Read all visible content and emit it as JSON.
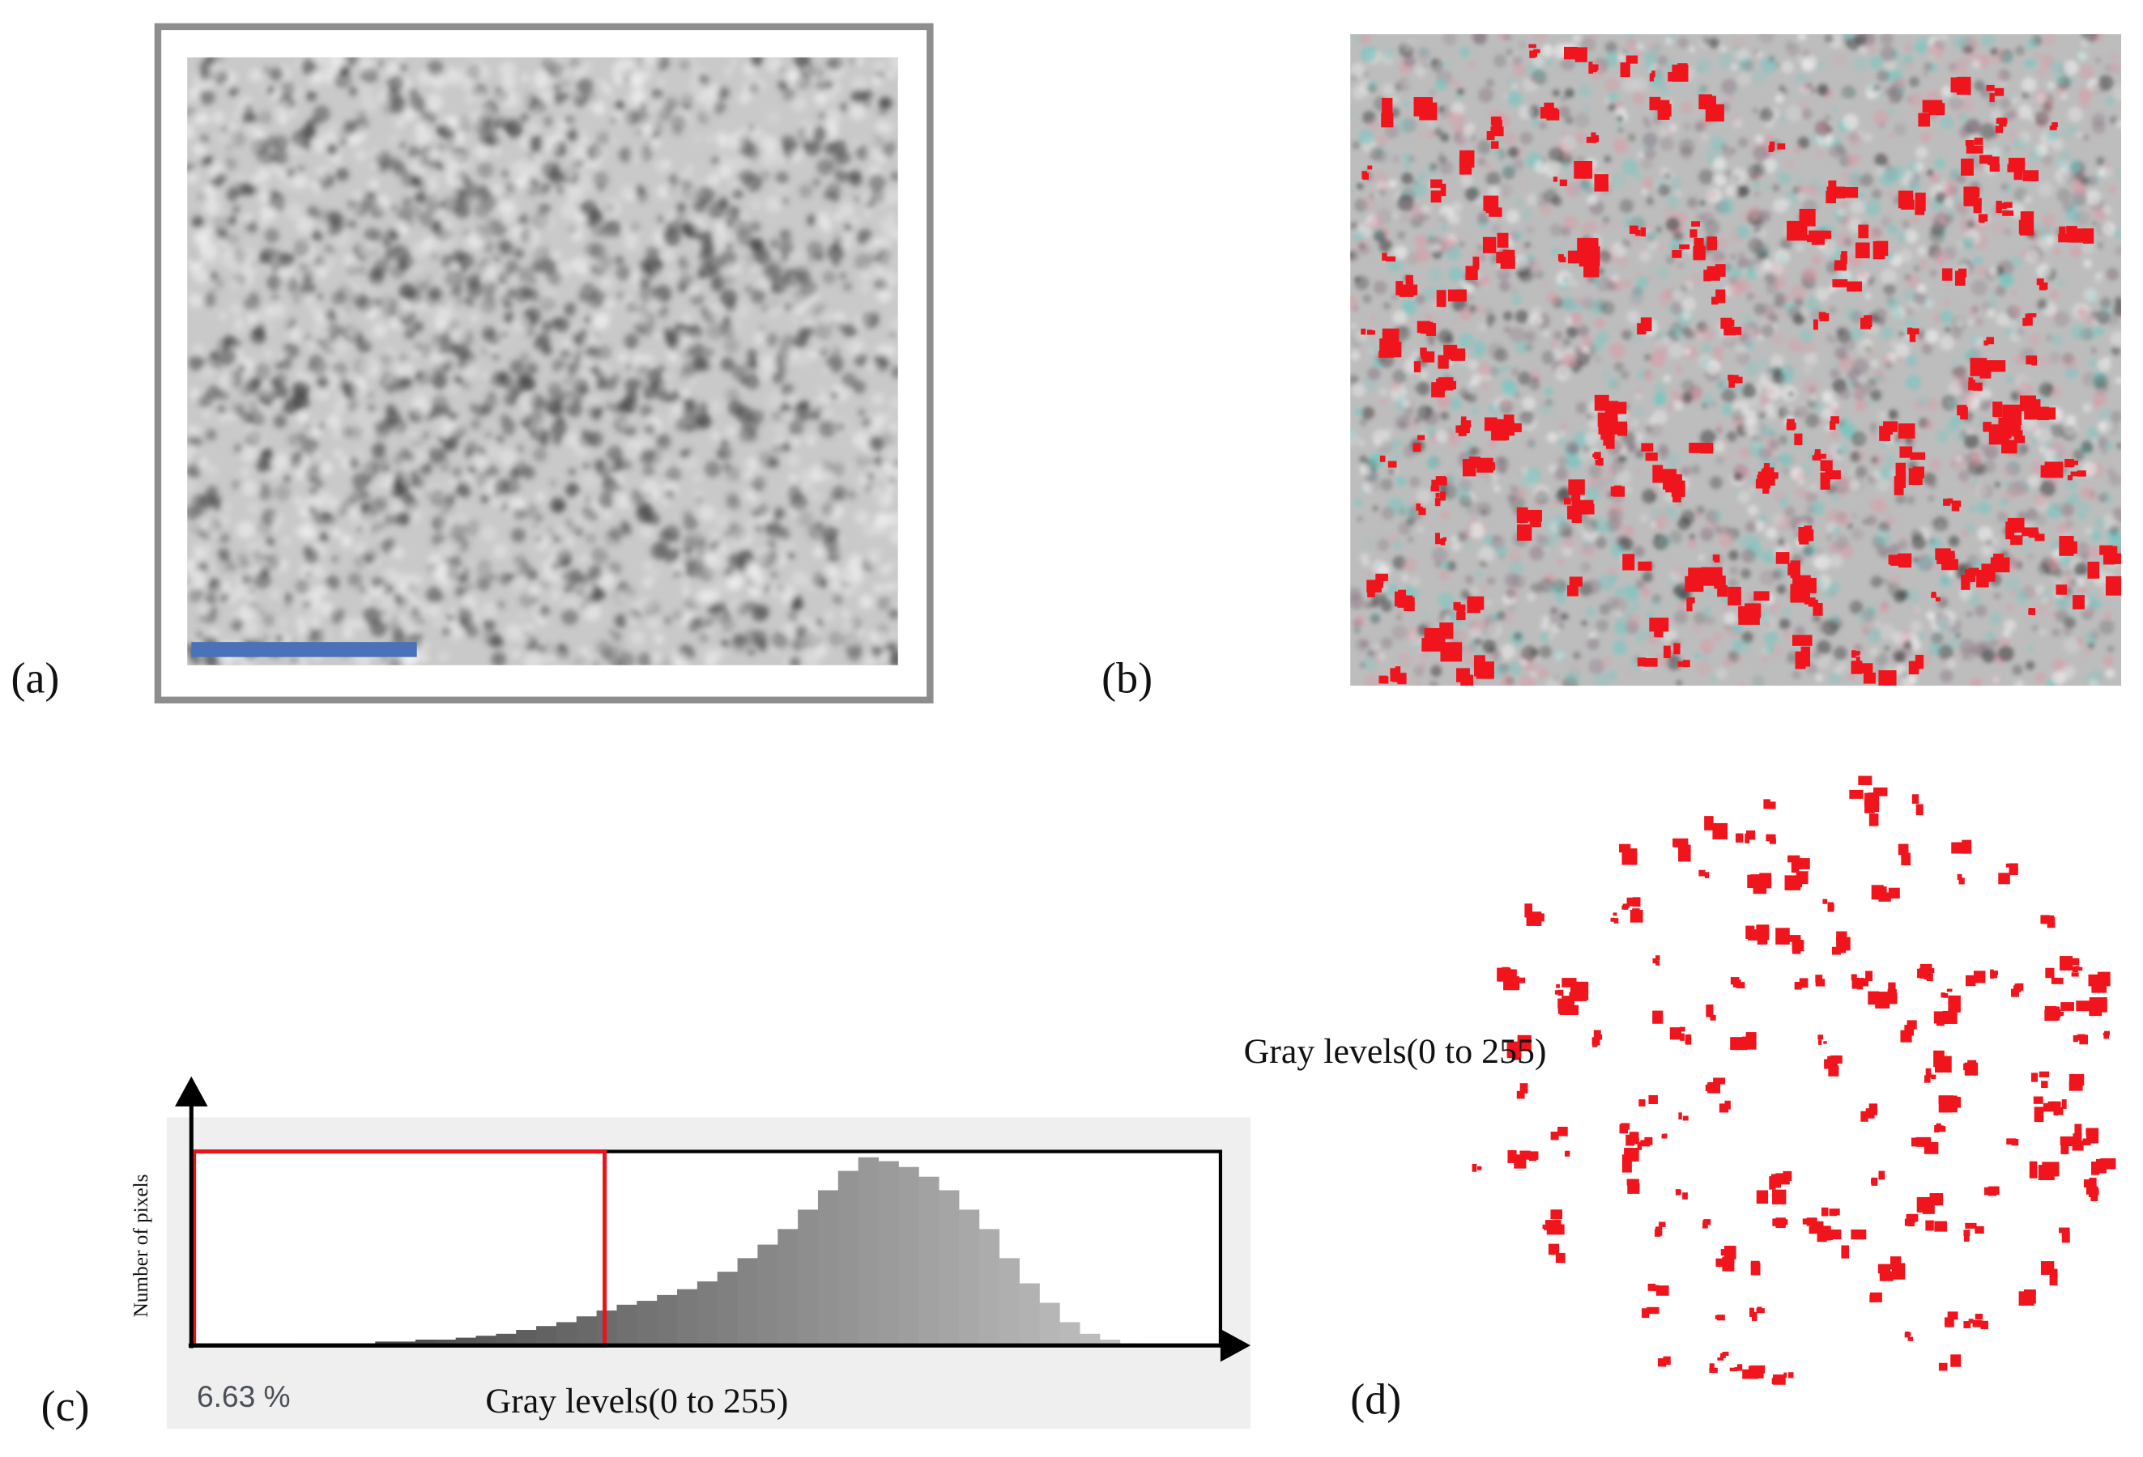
{
  "figure": {
    "panel_labels": [
      "(a)",
      "(b)",
      "(c)",
      "(d)"
    ],
    "stray_text": "Gray levels(0 to 255)"
  },
  "chart_data": {
    "type": "histogram",
    "y_label": "Number of pixels",
    "x_label": "Gray levels(0 to 255)",
    "annotation": "6.63 %",
    "threshold": 102,
    "xlim": [
      0,
      255
    ],
    "ylim": [
      0,
      100
    ],
    "bins": [
      0,
      5,
      10,
      15,
      20,
      25,
      30,
      35,
      40,
      45,
      50,
      55,
      60,
      65,
      70,
      75,
      80,
      85,
      90,
      95,
      100,
      105,
      110,
      115,
      120,
      125,
      130,
      135,
      140,
      145,
      150,
      155,
      160,
      165,
      170,
      175,
      180,
      185,
      190,
      195,
      200,
      205,
      210,
      215,
      220,
      225,
      230,
      235,
      240,
      245,
      250,
      255
    ],
    "values": [
      0,
      0,
      0,
      0,
      0,
      1,
      1,
      1,
      1,
      2,
      2,
      3,
      3,
      4,
      5,
      6,
      8,
      10,
      12,
      15,
      18,
      21,
      23,
      26,
      29,
      33,
      38,
      45,
      52,
      60,
      70,
      80,
      90,
      97,
      95,
      92,
      87,
      80,
      70,
      60,
      45,
      32,
      22,
      12,
      6,
      3,
      1,
      0,
      0,
      0,
      0
    ],
    "threshold_color": "#e8141b",
    "frame_color": "#000000"
  }
}
